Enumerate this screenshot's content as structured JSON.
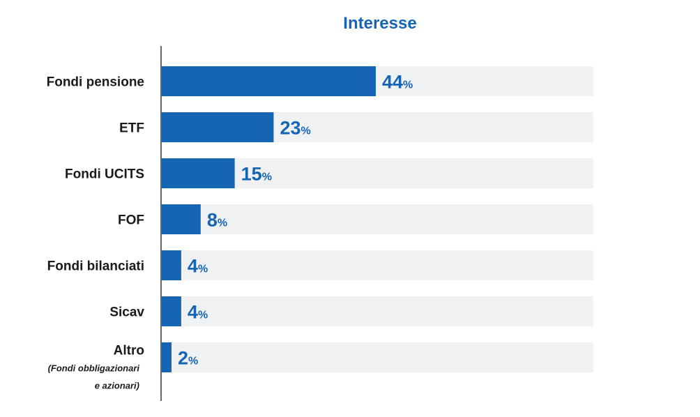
{
  "chart_data": {
    "type": "bar",
    "orientation": "horizontal",
    "title": "Interesse",
    "categories": [
      "Fondi pensione",
      "ETF",
      "Fondi UCITS",
      "FOF",
      "Fondi bilanciati",
      "Sicav",
      "Altro"
    ],
    "category_notes": {
      "6": [
        "(Fondi obbligazionari",
        "e azionari)"
      ]
    },
    "values": [
      44,
      23,
      15,
      8,
      4,
      4,
      2
    ],
    "unit": "%",
    "xlim": [
      0,
      100
    ],
    "grid": false,
    "legend": "none",
    "colors": {
      "bar": "#1565b4",
      "track": "#f0f1f3",
      "title": "#1565b4",
      "value_label": "#1565b4",
      "axis": "#333333"
    }
  }
}
